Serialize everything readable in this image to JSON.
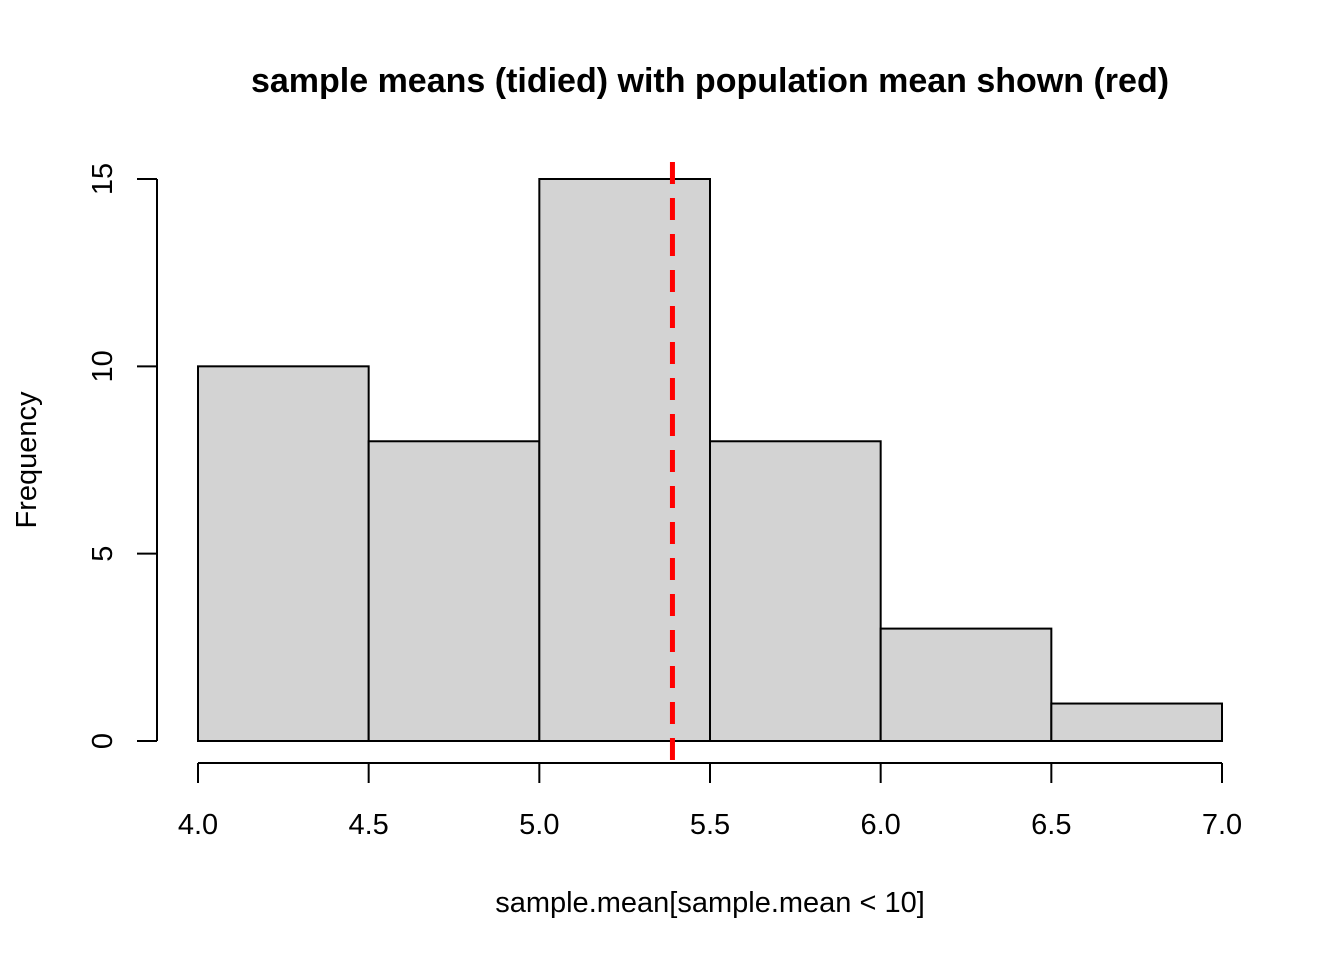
{
  "chart_data": {
    "type": "bar",
    "subtype": "histogram",
    "title": "sample means (tidied) with population mean shown (red)",
    "xlabel": "sample.mean[sample.mean < 10]",
    "ylabel": "Frequency",
    "bins": [
      {
        "start": 4.0,
        "end": 4.5,
        "count": 10
      },
      {
        "start": 4.5,
        "end": 5.0,
        "count": 8
      },
      {
        "start": 5.0,
        "end": 5.5,
        "count": 15
      },
      {
        "start": 5.5,
        "end": 6.0,
        "count": 8
      },
      {
        "start": 6.0,
        "end": 6.5,
        "count": 3
      },
      {
        "start": 6.5,
        "end": 7.0,
        "count": 1
      }
    ],
    "xlim": [
      4.0,
      7.0
    ],
    "ylim": [
      0,
      15
    ],
    "x_ticks": [
      "4.0",
      "4.5",
      "5.0",
      "5.5",
      "6.0",
      "6.5",
      "7.0"
    ],
    "y_ticks": [
      "0",
      "5",
      "10",
      "15"
    ],
    "reference_line": {
      "x": 5.39,
      "color": "#ff0000",
      "style": "dashed"
    },
    "bar_fill": "#d3d3d3",
    "bar_stroke": "#000000",
    "grid": false,
    "legend": "none"
  }
}
